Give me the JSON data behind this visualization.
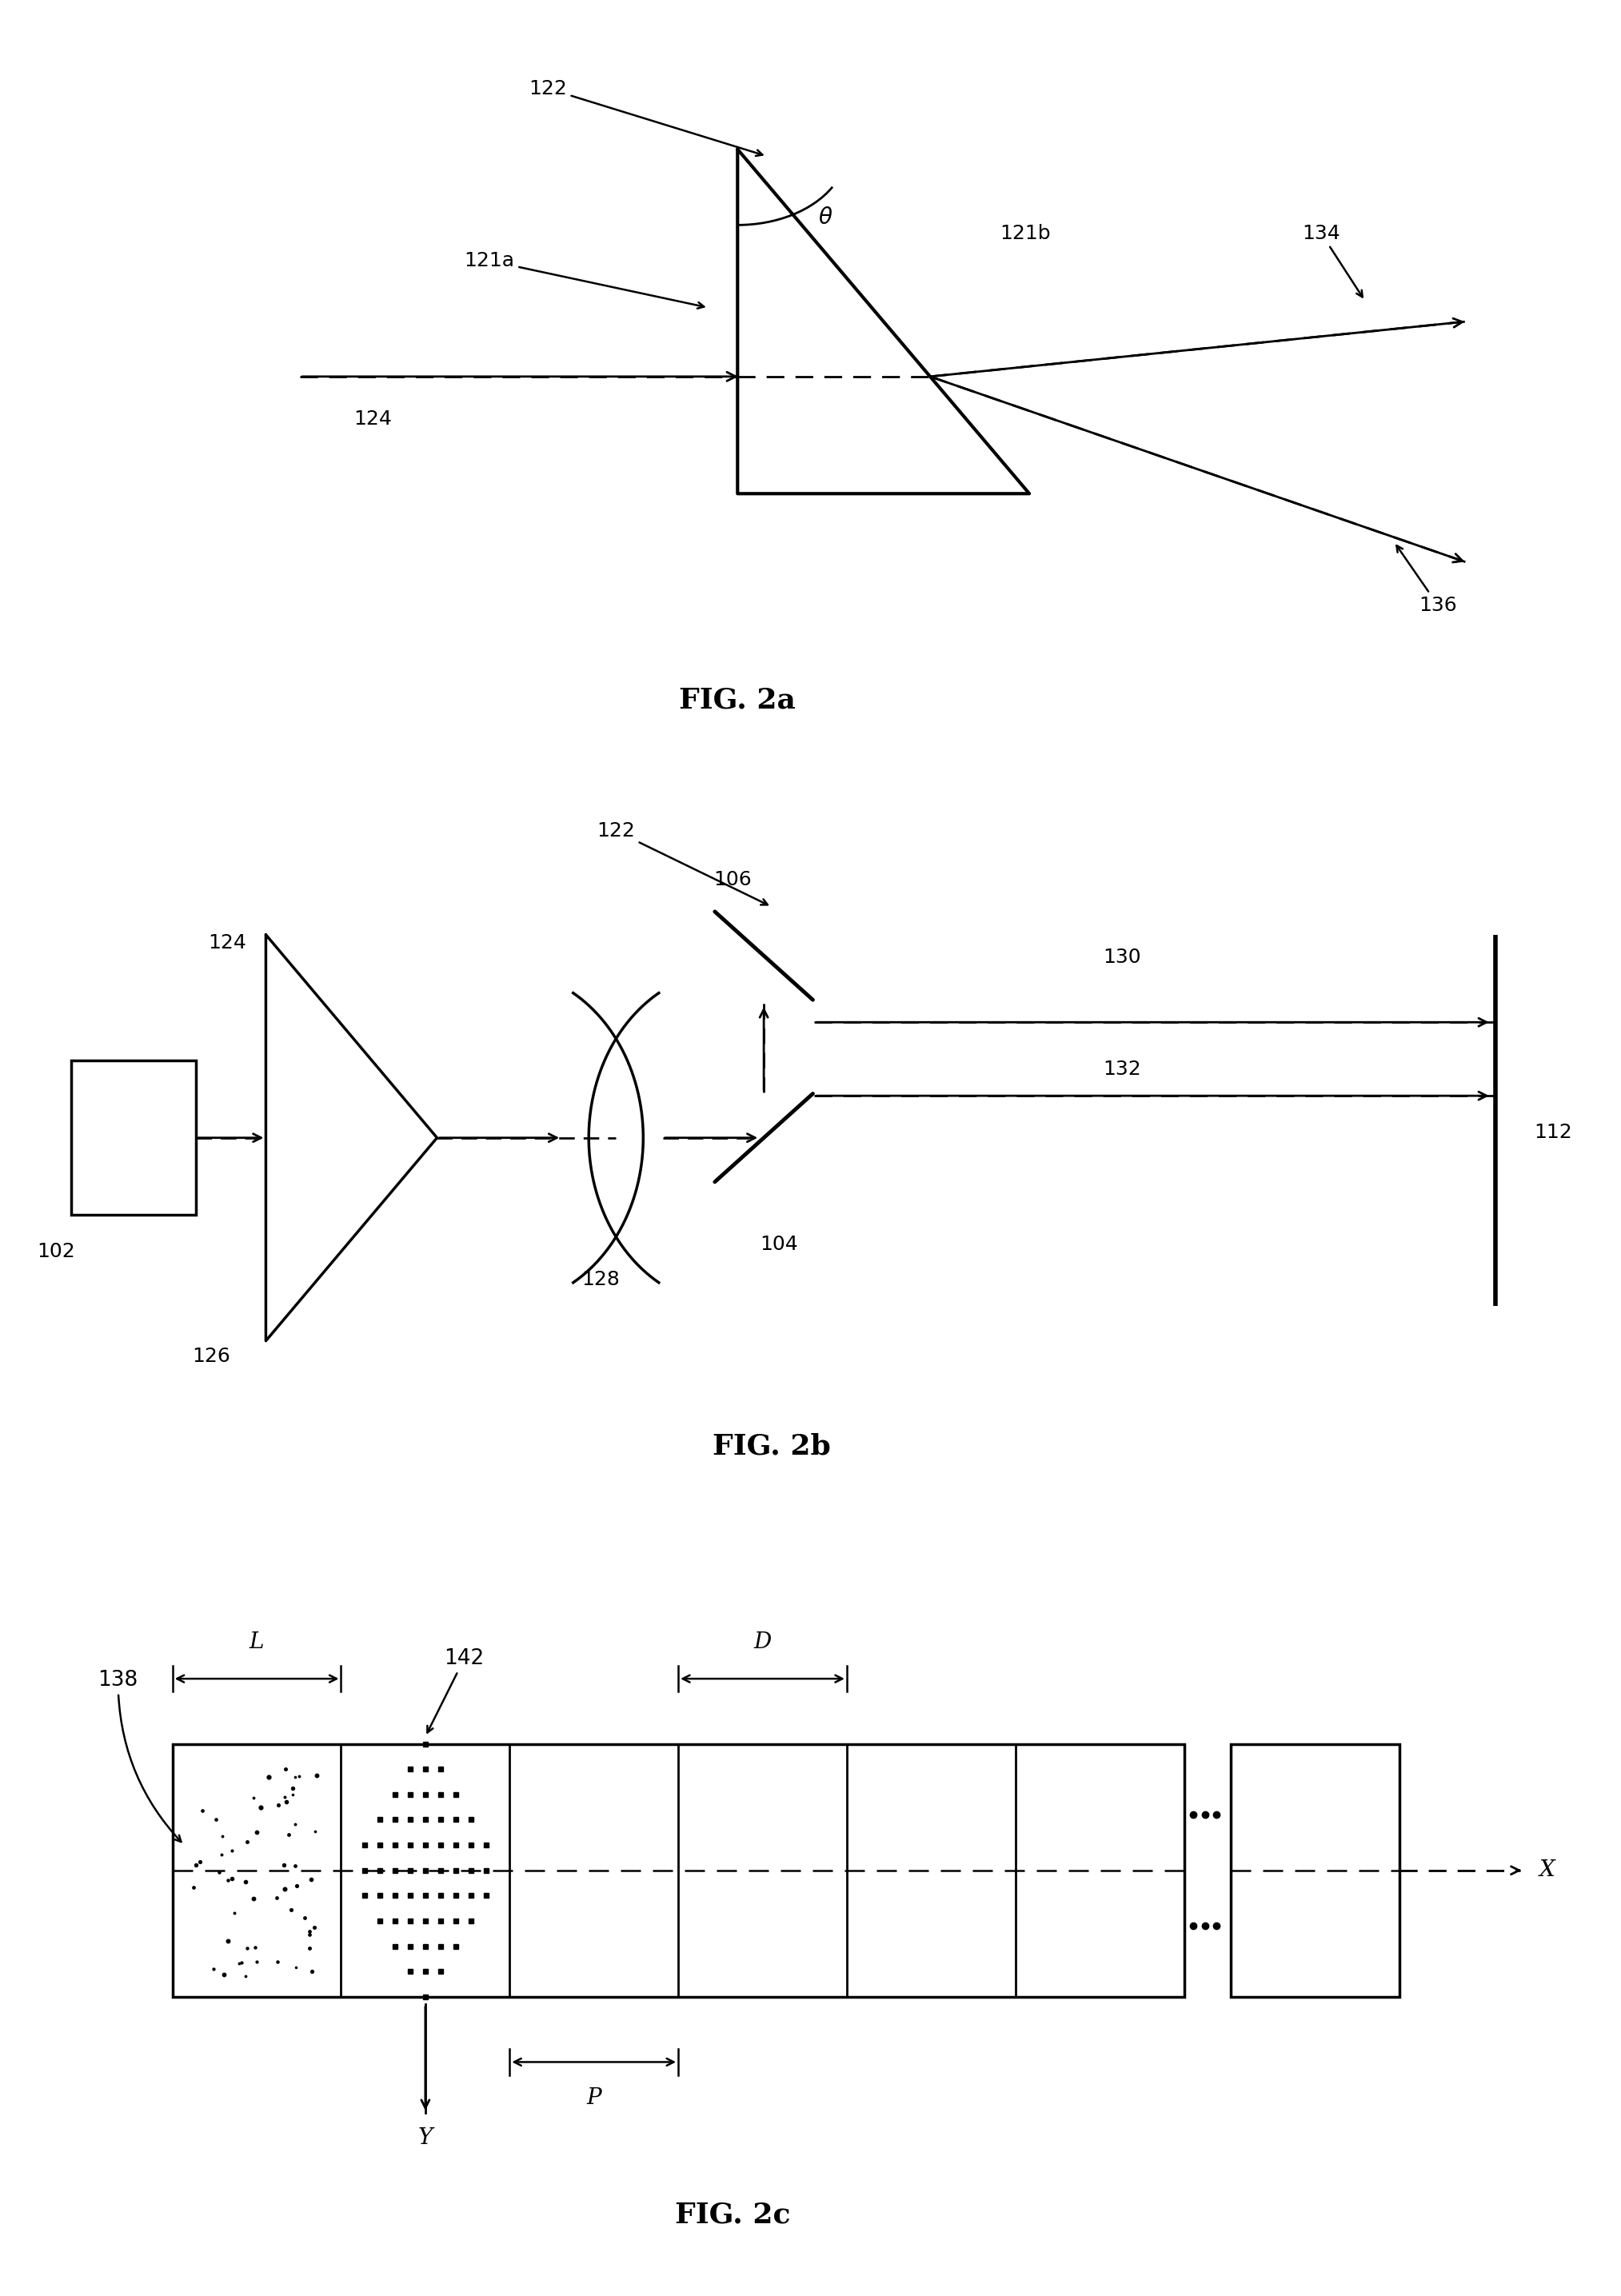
{
  "bg_color": "#ffffff",
  "line_color": "#000000",
  "fig2a": {
    "title": "FIG. 2a"
  },
  "fig2b": {
    "title": "FIG. 2b"
  },
  "fig2c": {
    "title": "FIG. 2c"
  }
}
